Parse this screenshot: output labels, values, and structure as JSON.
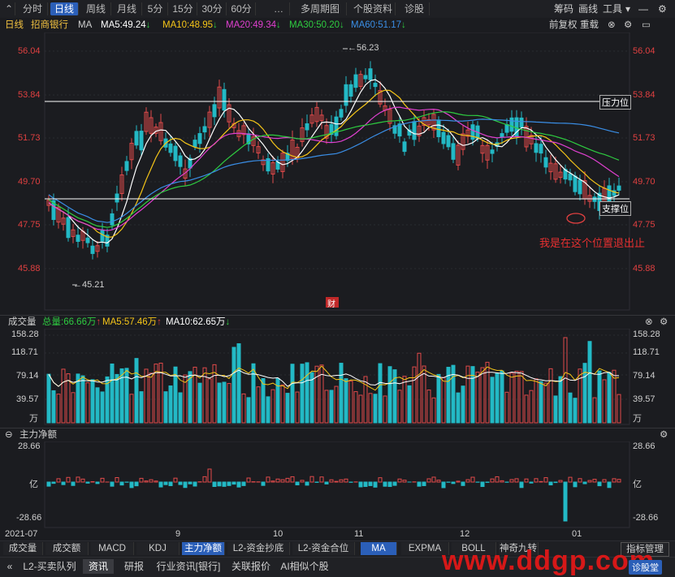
{
  "toolbar": {
    "period_tabs": [
      "分时",
      "日线",
      "周线",
      "月线",
      "5分",
      "15分",
      "30分",
      "60分",
      "…",
      "多周期图",
      "个股资料",
      "诊股"
    ],
    "active_tab": "日线",
    "right_items": [
      "筹码",
      "画线",
      "工具"
    ]
  },
  "stock": {
    "period": "日线",
    "name": "招商银行",
    "indicator": "MA",
    "ma5": "MA5:49.24",
    "ma10": "MA10:48.95",
    "ma20": "MA20:49.34",
    "ma30": "MA30:50.20",
    "ma60": "MA60:51.17",
    "adjust": "前复权",
    "overlay": "重载"
  },
  "colors": {
    "up": "#e04a4a",
    "down": "#23b9c5",
    "ma5": "#ffffff",
    "ma10": "#f5c518",
    "ma20": "#e040d0",
    "ma30": "#2ecc40",
    "ma60": "#3a8ee6",
    "accent": "#2b5fb8"
  },
  "price_axis": {
    "ticks": [
      "56.04",
      "53.84",
      "51.73",
      "49.70",
      "47.75",
      "45.88"
    ],
    "high_label": "56.23",
    "low_label": "45.21",
    "resistance_label": "压力位",
    "support_label": "支撑位",
    "annotation": "我是在这个位置退出止",
    "finance_marker": "财"
  },
  "volume": {
    "title": "成交量",
    "total": "总量:66.66万",
    "ma5": "MA5:57.46万",
    "ma10": "MA10:62.65万",
    "ticks": [
      "158.28",
      "118.71",
      "79.14",
      "39.57"
    ],
    "unit": "万"
  },
  "netflow": {
    "title": "主力净额",
    "ticks_top": "28.66",
    "ticks_bottom": "-28.66",
    "unit": "亿"
  },
  "date_axis": [
    "2021-07",
    "9",
    "10",
    "11",
    "12",
    "01"
  ],
  "indicator_tabs": [
    "成交量",
    "成交额",
    "MACD",
    "KDJ",
    "主力净额",
    "L2-资金抄底",
    "L2-资金合位"
  ],
  "active_indicator": "主力净额",
  "overlay_tabs": [
    "MA",
    "EXPMA",
    "BOLL",
    "神奇九转"
  ],
  "active_overlay": "MA",
  "indicator_manage": "指标管理",
  "news_tabs": [
    "L2-买卖队列",
    "资讯",
    "研报",
    "行业资讯[银行]",
    "关联报价",
    "AI相似个股"
  ],
  "active_news": "资讯",
  "watermark": "www.ddgp.com",
  "diagnose": "诊股堂"
}
